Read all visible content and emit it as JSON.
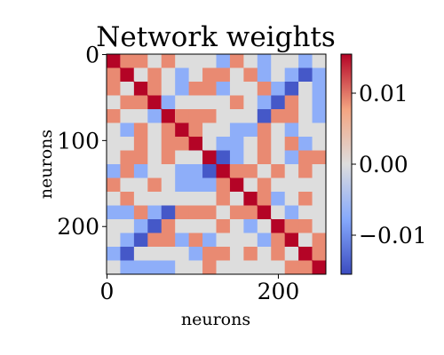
{
  "chart_data": {
    "type": "heatmap",
    "title": "Network weights",
    "xlabel": "neurons",
    "ylabel": "neurons",
    "n": 256,
    "block": 16,
    "x_ticks": [
      {
        "value": 0,
        "label": "0"
      },
      {
        "value": 200,
        "label": "200"
      }
    ],
    "y_ticks": [
      {
        "value": 0,
        "label": "0"
      },
      {
        "value": 100,
        "label": "100"
      },
      {
        "value": 200,
        "label": "200"
      }
    ],
    "colorbar": {
      "colormap": "coolwarm",
      "vmin": -0.0155,
      "vmax": 0.0155,
      "ticks": [
        {
          "value": 0.01,
          "label": "0.01"
        },
        {
          "value": 0.0,
          "label": "0.00"
        },
        {
          "value": -0.01,
          "label": "−0.01"
        }
      ]
    },
    "levels": {
      "d": 0.0155,
      "h": 0.009,
      "z": 0.0,
      "l": -0.007,
      "b": -0.0145
    },
    "matrix": [
      "dhhzhzzzlhzlzzlz",
      "hdzhzlzhhzhlzlbl",
      "hzdhzlhhlzzhlbzl",
      "zhhdlzzzzhzlbhzl",
      "hzzldhhhzzzbhhzl",
      "zlhzhdhzzllhzlzz",
      "zzhzhhdzllzhzhlz",
      "zhhzhzzdblzhzlhh",
      "lhlzzllbdhhzhzhz",
      "hzzhzlllhdzhzzzz",
      "zhzzzzzzhzdhlzhz",
      "llhlbhhhzhhdzlzz",
      "zzlbhzzzhzlzdhhz",
      "zlbhhlhlzzzlhdzh",
      "lbzzzzlhhzhzhzdh",
      "zllllzzhzzzzzhhd"
    ]
  }
}
